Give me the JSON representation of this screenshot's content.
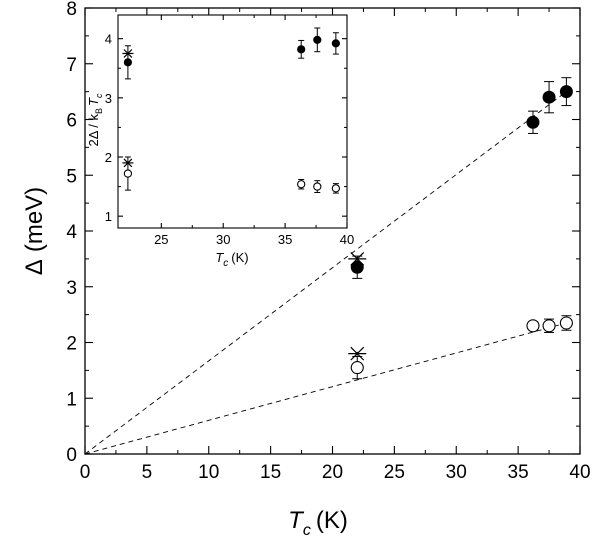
{
  "chart_data": [
    {
      "type": "scatter",
      "xlabel": {
        "symbol": "T",
        "subscript": "c",
        "unit": "(K)"
      },
      "ylabel": {
        "symbol": "Δ",
        "unit": "(meV)"
      },
      "xlim": [
        0,
        40
      ],
      "ylim": [
        0,
        8
      ],
      "xticks": [
        "0",
        "5",
        "10",
        "15",
        "20",
        "25",
        "30",
        "35",
        "40"
      ],
      "yticks": [
        "0",
        "1",
        "2",
        "3",
        "4",
        "5",
        "6",
        "7",
        "8"
      ],
      "series": [
        {
          "marker": "filled-circle",
          "points": [
            {
              "x": 22,
              "y": 3.35,
              "err": 0.2
            },
            {
              "x": 36.2,
              "y": 5.95,
              "err": 0.2
            },
            {
              "x": 37.5,
              "y": 6.4,
              "err": 0.28
            },
            {
              "x": 38.9,
              "y": 6.5,
              "err": 0.25
            }
          ]
        },
        {
          "marker": "open-circle",
          "points": [
            {
              "x": 22,
              "y": 1.55,
              "err": 0.2
            },
            {
              "x": 36.2,
              "y": 2.3,
              "err": 0.07
            },
            {
              "x": 37.5,
              "y": 2.3,
              "err": 0.12
            },
            {
              "x": 38.9,
              "y": 2.35,
              "err": 0.13
            }
          ]
        },
        {
          "marker": "asterisk",
          "points": [
            {
              "x": 22,
              "y": 3.5
            },
            {
              "x": 22,
              "y": 1.8
            }
          ]
        }
      ],
      "lines": [
        {
          "style": "dashed",
          "from": [
            0,
            0
          ],
          "to": [
            38.9,
            6.5
          ]
        },
        {
          "style": "dashed",
          "from": [
            0,
            0
          ],
          "to": [
            38.9,
            2.35
          ]
        }
      ]
    },
    {
      "type": "scatter",
      "position": "inset-top-left",
      "xlabel": {
        "symbol": "T",
        "subscript": "c",
        "unit": "(K)"
      },
      "ylabel": {
        "text": "2Δ / k",
        "sub1": "B",
        "mid": "T",
        "sub2": "c"
      },
      "xlim": [
        21.5,
        40
      ],
      "ylim": [
        0.8,
        4.4
      ],
      "xticks": [
        "25",
        "30",
        "35",
        "40"
      ],
      "yticks": [
        "1",
        "2",
        "3",
        "4"
      ],
      "series": [
        {
          "marker": "filled-circle",
          "points": [
            {
              "x": 22.3,
              "y": 3.6,
              "err": 0.28
            },
            {
              "x": 36.3,
              "y": 3.82,
              "err": 0.15
            },
            {
              "x": 37.6,
              "y": 3.98,
              "err": 0.2
            },
            {
              "x": 39.1,
              "y": 3.92,
              "err": 0.18
            }
          ]
        },
        {
          "marker": "open-circle",
          "points": [
            {
              "x": 22.3,
              "y": 1.72,
              "err": 0.28
            },
            {
              "x": 36.3,
              "y": 1.54,
              "err": 0.08
            },
            {
              "x": 37.6,
              "y": 1.5,
              "err": 0.1
            },
            {
              "x": 39.1,
              "y": 1.47,
              "err": 0.08
            }
          ]
        },
        {
          "marker": "asterisk",
          "points": [
            {
              "x": 22.3,
              "y": 3.75
            },
            {
              "x": 22.3,
              "y": 1.9
            }
          ]
        }
      ]
    }
  ]
}
